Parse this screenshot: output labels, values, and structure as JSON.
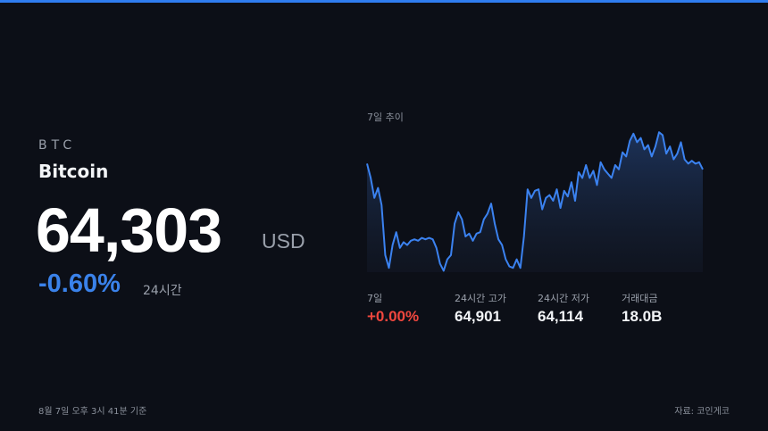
{
  "asset": {
    "symbol": "BTC",
    "name": "Bitcoin",
    "price": "64,303",
    "currency": "USD",
    "change": "-0.60%",
    "change_period": "24시간"
  },
  "chart_data": {
    "type": "line",
    "title": "7일 추이",
    "color": "#3b82f0",
    "ylim": [
      0,
      100
    ],
    "values": [
      76,
      66,
      52,
      59,
      47,
      12,
      3,
      19,
      28,
      17,
      21,
      19,
      22,
      23,
      22,
      24,
      23,
      24,
      23,
      17,
      6,
      1,
      9,
      12,
      34,
      42,
      37,
      25,
      27,
      22,
      27,
      28,
      37,
      41,
      48,
      34,
      23,
      19,
      9,
      4,
      3,
      9,
      3,
      25,
      58,
      52,
      57,
      58,
      44,
      52,
      54,
      50,
      58,
      45,
      57,
      53,
      63,
      50,
      70,
      66,
      75,
      66,
      71,
      61,
      77,
      72,
      69,
      66,
      75,
      72,
      84,
      81,
      92,
      97,
      91,
      94,
      86,
      89,
      81,
      88,
      98,
      96,
      83,
      88,
      79,
      83,
      91,
      79,
      76,
      78,
      76,
      77,
      72
    ]
  },
  "stats": [
    {
      "label": "7일",
      "value": "+0.00%"
    },
    {
      "label": "24시간 고가",
      "value": "64,901"
    },
    {
      "label": "24시간 저가",
      "value": "64,114"
    },
    {
      "label": "거래대금",
      "value": "18.0B"
    }
  ],
  "footer": {
    "timestamp": "8월 7일 오후 3시 41분 기준",
    "source": "자료: 코인게코"
  }
}
